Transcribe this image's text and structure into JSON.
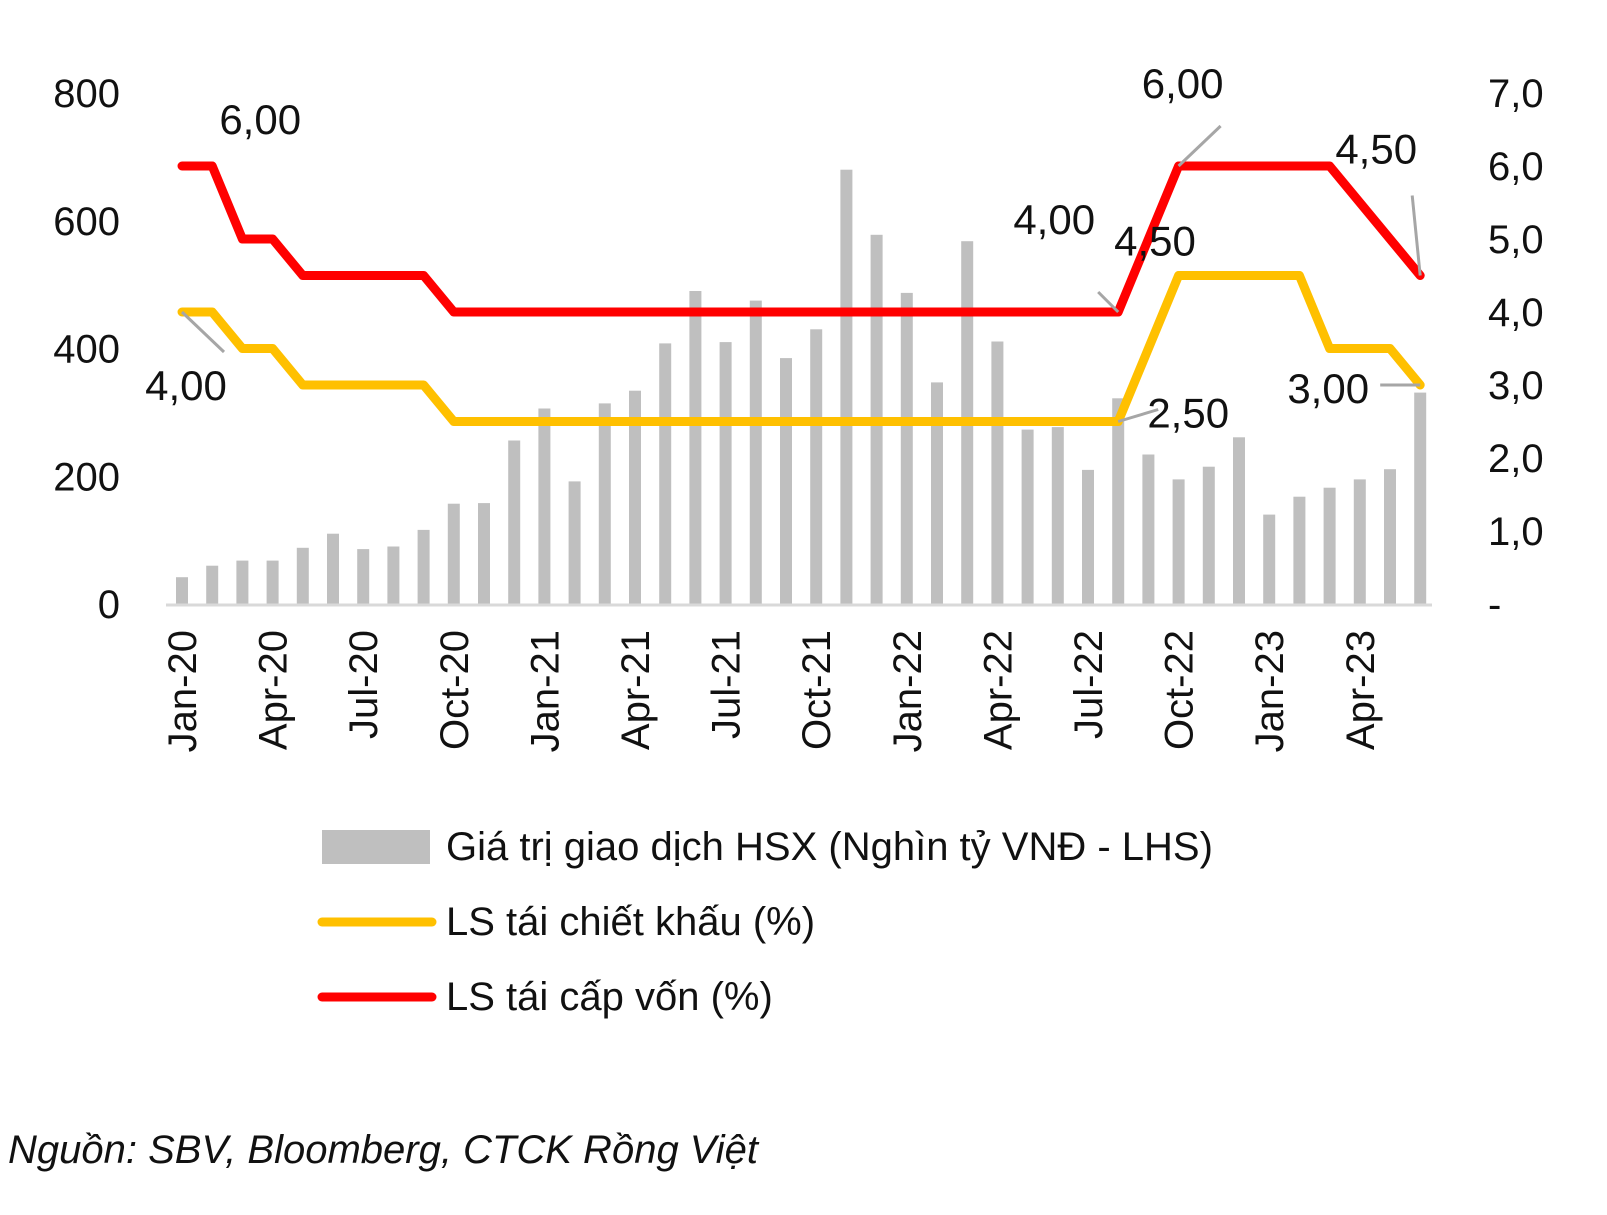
{
  "chart_data": {
    "type": "bar",
    "categories": [
      "Jan-20",
      "Feb-20",
      "Mar-20",
      "Apr-20",
      "May-20",
      "Jun-20",
      "Jul-20",
      "Aug-20",
      "Sep-20",
      "Oct-20",
      "Nov-20",
      "Dec-20",
      "Jan-21",
      "Feb-21",
      "Mar-21",
      "Apr-21",
      "May-21",
      "Jun-21",
      "Jul-21",
      "Aug-21",
      "Sep-21",
      "Oct-21",
      "Nov-21",
      "Dec-21",
      "Jan-22",
      "Feb-22",
      "Mar-22",
      "Apr-22",
      "May-22",
      "Jun-22",
      "Jul-22",
      "Aug-22",
      "Sep-22",
      "Oct-22",
      "Nov-22",
      "Dec-22",
      "Jan-23",
      "Feb-23",
      "Mar-23",
      "Apr-23",
      "May-23",
      "Jun-23"
    ],
    "x_tick_labels": [
      "Jan-20",
      "Apr-20",
      "Jul-20",
      "Oct-20",
      "Jan-21",
      "Apr-21",
      "Jul-21",
      "Oct-21",
      "Jan-22",
      "Apr-22",
      "Jul-22",
      "Oct-22",
      "Jan-23",
      "Apr-23"
    ],
    "series": [
      {
        "name": "Giá trị giao dịch HSX (Nghìn tỷ VNĐ - LHS)",
        "kind": "bar",
        "axis": "left",
        "color": "#bfbfbf",
        "values": [
          42,
          60,
          68,
          68,
          88,
          110,
          86,
          90,
          116,
          157,
          158,
          256,
          306,
          192,
          314,
          334,
          408,
          490,
          410,
          475,
          385,
          430,
          680,
          578,
          487,
          347,
          568,
          411,
          273,
          277,
          210,
          322,
          234,
          195,
          215,
          261,
          140,
          168,
          182,
          195,
          211,
          331
        ]
      },
      {
        "name": "LS tái chiết khấu (%)",
        "kind": "line",
        "axis": "right",
        "color": "#ffc000",
        "values": [
          4.0,
          4.0,
          3.5,
          3.5,
          3.0,
          3.0,
          3.0,
          3.0,
          3.0,
          2.5,
          2.5,
          2.5,
          2.5,
          2.5,
          2.5,
          2.5,
          2.5,
          2.5,
          2.5,
          2.5,
          2.5,
          2.5,
          2.5,
          2.5,
          2.5,
          2.5,
          2.5,
          2.5,
          2.5,
          2.5,
          2.5,
          2.5,
          3.5,
          4.5,
          4.5,
          4.5,
          4.5,
          4.5,
          3.5,
          3.5,
          3.5,
          3.0
        ]
      },
      {
        "name": "LS tái cấp vốn (%)",
        "kind": "line",
        "axis": "right",
        "color": "#ff0000",
        "values": [
          6.0,
          6.0,
          5.0,
          5.0,
          4.5,
          4.5,
          4.5,
          4.5,
          4.5,
          4.0,
          4.0,
          4.0,
          4.0,
          4.0,
          4.0,
          4.0,
          4.0,
          4.0,
          4.0,
          4.0,
          4.0,
          4.0,
          4.0,
          4.0,
          4.0,
          4.0,
          4.0,
          4.0,
          4.0,
          4.0,
          4.0,
          4.0,
          5.0,
          6.0,
          6.0,
          6.0,
          6.0,
          6.0,
          6.0,
          5.5,
          5.0,
          4.5
        ]
      }
    ],
    "y_left": {
      "ylim": [
        0,
        800
      ],
      "ticks": [
        "0",
        "200",
        "400",
        "600",
        "800"
      ]
    },
    "y_right": {
      "ylim": [
        0,
        7
      ],
      "ticks": [
        "-",
        "1,0",
        "2,0",
        "3,0",
        "4,0",
        "5,0",
        "6,0",
        "7,0"
      ]
    },
    "annotations": [
      {
        "text": "6,00",
        "series": 2,
        "point": 1
      },
      {
        "text": "4,00",
        "series": 1,
        "point": 0
      },
      {
        "text": "4,00",
        "series": 2,
        "point": 31
      },
      {
        "text": "6,00",
        "series": 2,
        "point": 33
      },
      {
        "text": "4,50",
        "series": 1,
        "point": 35
      },
      {
        "text": "4,50",
        "series": 2,
        "point": 41
      },
      {
        "text": "2,50",
        "series": 1,
        "point": 31
      },
      {
        "text": "3,00",
        "series": 1,
        "point": 41
      }
    ],
    "grid": false,
    "legend_position": "bottom"
  },
  "source_text": "Nguồn: SBV, Bloomberg, CTCK Rồng Việt"
}
